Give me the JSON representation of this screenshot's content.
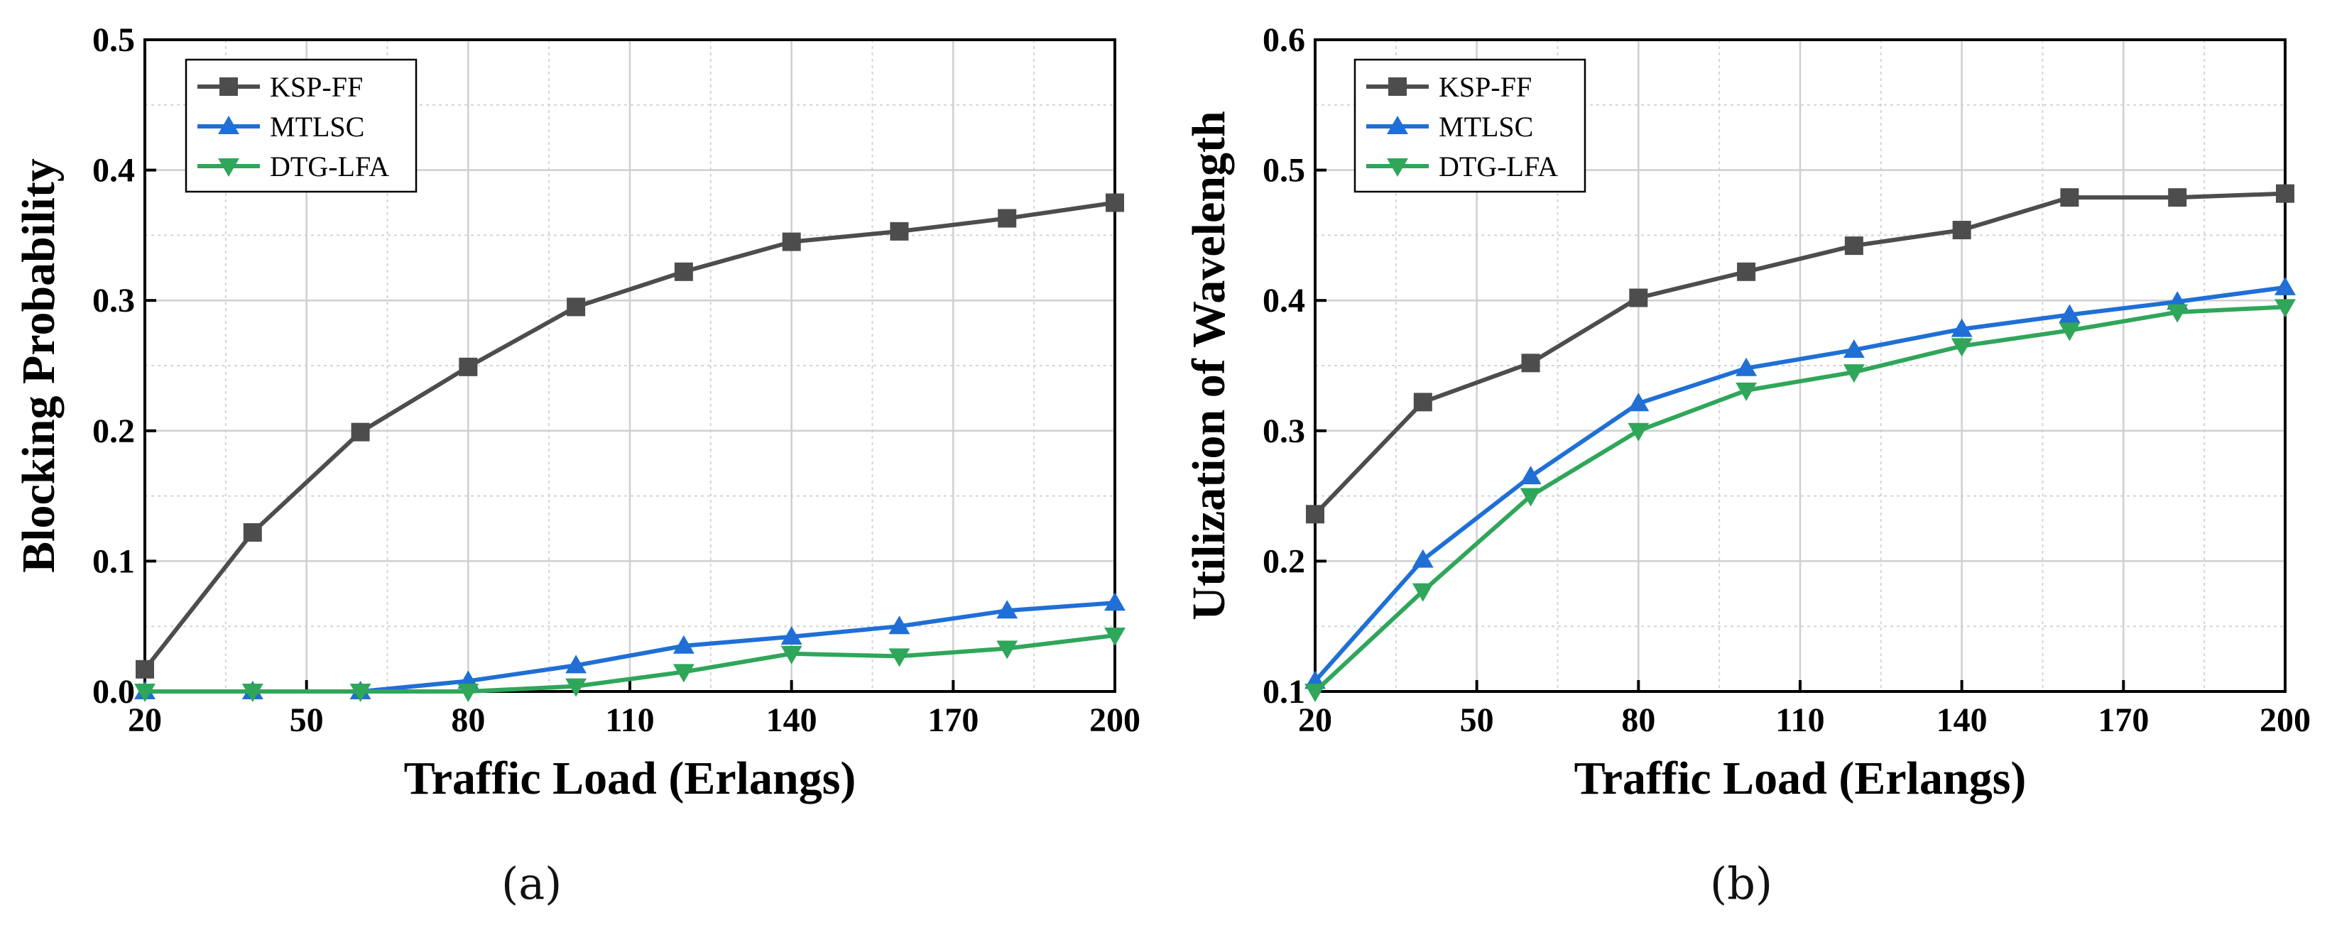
{
  "chart_data": [
    {
      "id": "a",
      "type": "line",
      "caption": "(a)",
      "xlabel": "Traffic Load (Erlangs)",
      "ylabel": "Blocking Probability",
      "xlim": [
        20,
        200
      ],
      "ylim": [
        0.0,
        0.5
      ],
      "xticks": [
        20,
        50,
        80,
        110,
        140,
        170,
        200
      ],
      "xtick_labels": [
        "20",
        "50",
        "80",
        "110",
        "140",
        "170",
        "200"
      ],
      "yticks": [
        0.0,
        0.1,
        0.2,
        0.3,
        0.4,
        0.5
      ],
      "ytick_labels": [
        "0.0",
        "0.1",
        "0.2",
        "0.3",
        "0.4",
        "0.5"
      ],
      "grid": true,
      "legend_position": "top-left",
      "x": [
        20,
        40,
        60,
        80,
        100,
        120,
        140,
        160,
        180,
        200
      ],
      "series": [
        {
          "name": "KSP-FF",
          "color": "#4d4d4d",
          "marker": "square",
          "values": [
            0.017,
            0.122,
            0.199,
            0.249,
            0.295,
            0.322,
            0.345,
            0.353,
            0.363,
            0.375
          ]
        },
        {
          "name": "MTLSC",
          "color": "#1f6fd6",
          "marker": "triangle-up",
          "values": [
            0.0,
            0.0,
            0.0,
            0.008,
            0.02,
            0.035,
            0.042,
            0.05,
            0.062,
            0.068
          ]
        },
        {
          "name": "DTG-LFA",
          "color": "#2fa65a",
          "marker": "triangle-down",
          "values": [
            0.0,
            0.0,
            0.0,
            0.0,
            0.004,
            0.015,
            0.029,
            0.027,
            0.033,
            0.043
          ]
        }
      ]
    },
    {
      "id": "b",
      "type": "line",
      "caption": "(b)",
      "xlabel": "Traffic Load (Erlangs)",
      "ylabel": "Utilization of Wavelength",
      "xlim": [
        20,
        200
      ],
      "ylim": [
        0.1,
        0.6
      ],
      "xticks": [
        20,
        50,
        80,
        110,
        140,
        170,
        200
      ],
      "xtick_labels": [
        "20",
        "50",
        "80",
        "110",
        "140",
        "170",
        "200"
      ],
      "yticks": [
        0.1,
        0.2,
        0.3,
        0.4,
        0.5,
        0.6
      ],
      "ytick_labels": [
        "0.1",
        "0.2",
        "0.3",
        "0.4",
        "0.5",
        "0.6"
      ],
      "grid": true,
      "legend_position": "top-left",
      "x": [
        20,
        40,
        60,
        80,
        100,
        120,
        140,
        160,
        180,
        200
      ],
      "series": [
        {
          "name": "KSP-FF",
          "color": "#4d4d4d",
          "marker": "square",
          "values": [
            0.236,
            0.322,
            0.352,
            0.402,
            0.422,
            0.442,
            0.454,
            0.479,
            0.479,
            0.482
          ]
        },
        {
          "name": "MTLSC",
          "color": "#1f6fd6",
          "marker": "triangle-up",
          "values": [
            0.108,
            0.201,
            0.265,
            0.321,
            0.348,
            0.362,
            0.378,
            0.389,
            0.399,
            0.41
          ]
        },
        {
          "name": "DTG-LFA",
          "color": "#2fa65a",
          "marker": "triangle-down",
          "values": [
            0.1,
            0.177,
            0.25,
            0.3,
            0.331,
            0.345,
            0.365,
            0.377,
            0.391,
            0.395
          ]
        }
      ]
    }
  ]
}
